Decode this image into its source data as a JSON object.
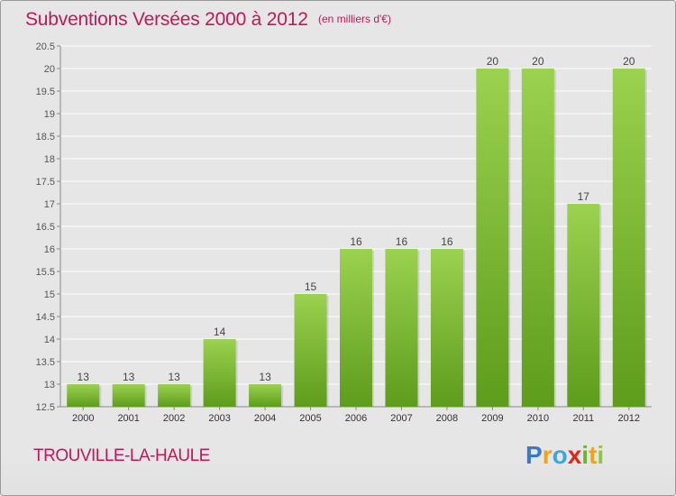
{
  "header": {
    "title": "Subventions Versées 2000 à 2012",
    "unit": "(en milliers d'€)"
  },
  "footer": {
    "commune": "TROUVILLE-LA-HAULE",
    "brand": "Proxiti",
    "brand_letters": [
      "P",
      "r",
      "o",
      "x",
      "i",
      "t",
      "i"
    ]
  },
  "colors": {
    "title": "#c0185a",
    "bar_top": "#9bd24f",
    "bar_bottom": "#5e9c1c",
    "grid": "#ffffff",
    "background": "#e6e6e6"
  },
  "chart_data": {
    "type": "bar",
    "categories": [
      "2000",
      "2001",
      "2002",
      "2003",
      "2004",
      "2005",
      "2006",
      "2007",
      "2008",
      "2009",
      "2010",
      "2011",
      "2012"
    ],
    "values": [
      13,
      13,
      13,
      14,
      13,
      15,
      16,
      16,
      16,
      20,
      20,
      17,
      20
    ],
    "data_labels": [
      "13",
      "13",
      "13",
      "14",
      "13",
      "15",
      "16",
      "16",
      "16",
      "20",
      "20",
      "17",
      "20"
    ],
    "yticks": [
      "12.5",
      "13",
      "13.5",
      "14",
      "14.5",
      "15",
      "15.5",
      "16",
      "16.5",
      "17",
      "17.5",
      "18",
      "18.5",
      "19",
      "19.5",
      "20",
      "20.5"
    ],
    "ylim": [
      12.5,
      20.5
    ],
    "grid": true,
    "legend": "none"
  }
}
